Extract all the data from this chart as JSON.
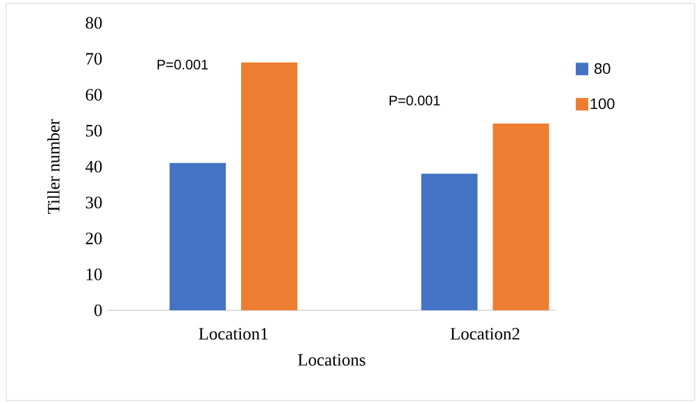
{
  "chart_data": {
    "type": "bar",
    "xlabel": "Locations",
    "ylabel": "Tiller number",
    "categories": [
      "Location1",
      "Location2"
    ],
    "series": [
      {
        "name": "80",
        "color": "#4472c4",
        "values": [
          41,
          38
        ]
      },
      {
        "name": "100",
        "color": "#ed7d31",
        "values": [
          69,
          52
        ]
      }
    ],
    "ylim": [
      0,
      80
    ],
    "yticks": [
      0,
      10,
      20,
      30,
      40,
      50,
      60,
      70,
      80
    ],
    "legend": "right",
    "annotations": [
      "P=0.001",
      "P=0.001"
    ]
  }
}
